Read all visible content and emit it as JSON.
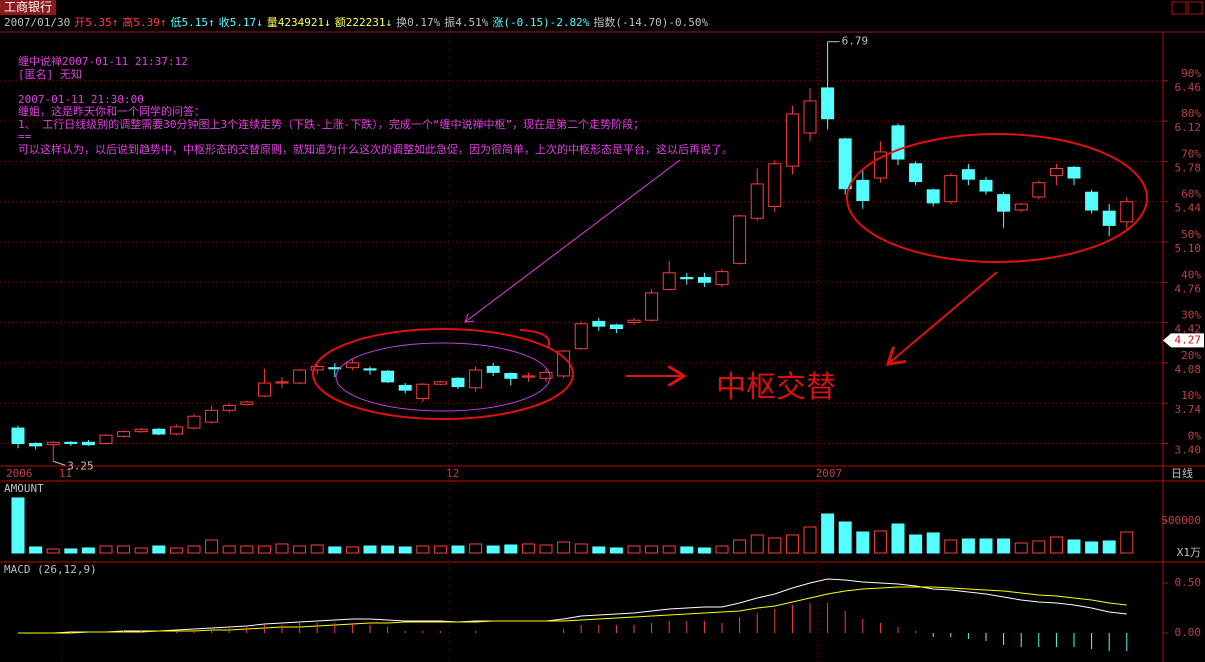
{
  "header": {
    "stock": "工商银行",
    "info": [
      "2007/01/30",
      "开5.35↑",
      "高5.39↑",
      "低5.15↑",
      "收5.17↓",
      "量4234921↓",
      "额222231↓",
      "换0.17%",
      "振4.51%",
      "涨(-0.15)-2.82%",
      "指数(-14.70)-0.50%"
    ]
  },
  "annotation": {
    "lines": [
      "缠中说禅2007-01-11 21:37:12",
      "[匿名] 无知",
      "",
      "2007-01-11 21:30:00",
      "缠姐，这是昨天你和一个同学的问答：",
      "1、 工行日线级别的调整需要30分钟图上3个连续走势（下跌-上涨-下跌），完成一个“缠中说禅中枢”，现在是第二个走势阶段；",
      "==",
      "可以这样认为，以后说到趋势中，中枢形态的交替原则，就知道为什么这次的调整如此急促，因为很简单，上次的中枢形态是平台，这以后再说了。"
    ],
    "callout": "中枢交替"
  },
  "chart_data": [
    {
      "type": "candlestick",
      "categories": [
        "2006",
        null,
        null,
        "11",
        null,
        null,
        null,
        null,
        null,
        null,
        null,
        null,
        null,
        null,
        null,
        null,
        null,
        null,
        null,
        null,
        null,
        null,
        null,
        null,
        null,
        "12",
        null,
        null,
        null,
        null,
        null,
        null,
        null,
        null,
        null,
        null,
        null,
        null,
        null,
        null,
        null,
        null,
        null,
        null,
        null,
        null,
        "2007",
        null,
        null,
        null,
        null,
        null,
        null,
        null,
        null,
        null,
        null,
        null,
        null,
        null,
        null,
        null,
        null,
        null
      ],
      "open": [
        3.53,
        3.4,
        3.39,
        3.41,
        3.41,
        3.4,
        3.46,
        3.5,
        3.52,
        3.48,
        3.53,
        3.58,
        3.68,
        3.73,
        3.8,
        3.91,
        3.91,
        4.02,
        4.04,
        4.04,
        4.03,
        4.01,
        3.89,
        3.78,
        3.9,
        3.95,
        3.87,
        4.05,
        3.99,
        3.96,
        3.95,
        3.97,
        4.2,
        4.43,
        4.4,
        4.42,
        4.44,
        4.7,
        4.8,
        4.8,
        4.74,
        4.92,
        5.3,
        5.4,
        5.74,
        6.02,
        6.4,
        5.97,
        5.62,
        5.64,
        6.08,
        5.76,
        5.54,
        5.44,
        5.71,
        5.62,
        5.5,
        5.37,
        5.48,
        5.66,
        5.73,
        5.52,
        5.36,
        5.27
      ],
      "high": [
        3.55,
        3.41,
        3.42,
        3.42,
        3.43,
        3.48,
        3.51,
        3.53,
        3.53,
        3.56,
        3.65,
        3.72,
        3.74,
        3.76,
        4.03,
        3.96,
        4.03,
        4.07,
        4.08,
        4.11,
        4.05,
        4.02,
        3.91,
        3.91,
        3.93,
        3.96,
        4.05,
        4.08,
        4.0,
        4.0,
        4.03,
        4.19,
        4.43,
        4.46,
        4.41,
        4.46,
        4.7,
        4.94,
        4.84,
        4.84,
        4.87,
        5.33,
        5.72,
        5.79,
        6.25,
        6.4,
        6.79,
        5.98,
        5.7,
        5.95,
        6.1,
        5.78,
        5.55,
        5.68,
        5.76,
        5.65,
        5.52,
        5.43,
        5.62,
        5.76,
        5.74,
        5.54,
        5.42,
        5.48
      ],
      "low": [
        3.36,
        3.35,
        3.25,
        3.38,
        3.38,
        3.39,
        3.45,
        3.49,
        3.47,
        3.47,
        3.52,
        3.57,
        3.66,
        3.72,
        3.79,
        3.87,
        3.9,
        3.98,
        3.96,
        4.02,
        3.98,
        3.91,
        3.82,
        3.75,
        3.89,
        3.86,
        3.84,
        3.97,
        3.89,
        3.92,
        3.92,
        3.95,
        4.19,
        4.35,
        4.33,
        4.4,
        4.43,
        4.69,
        4.74,
        4.72,
        4.72,
        4.91,
        5.28,
        5.35,
        5.67,
        5.95,
        6.05,
        5.5,
        5.38,
        5.6,
        5.75,
        5.58,
        5.4,
        5.42,
        5.58,
        5.5,
        5.22,
        5.35,
        5.46,
        5.58,
        5.58,
        5.34,
        5.15,
        5.21
      ],
      "close": [
        3.4,
        3.38,
        3.41,
        3.4,
        3.39,
        3.47,
        3.5,
        3.52,
        3.48,
        3.54,
        3.63,
        3.68,
        3.72,
        3.75,
        3.91,
        3.92,
        4.02,
        4.05,
        4.03,
        4.08,
        4.02,
        3.92,
        3.85,
        3.9,
        3.92,
        3.88,
        4.02,
        4.0,
        3.95,
        3.97,
        4.0,
        4.18,
        4.41,
        4.39,
        4.37,
        4.44,
        4.67,
        4.84,
        4.79,
        4.76,
        4.85,
        5.32,
        5.59,
        5.76,
        6.18,
        6.29,
        6.14,
        5.55,
        5.45,
        5.86,
        5.8,
        5.61,
        5.43,
        5.66,
        5.63,
        5.53,
        5.36,
        5.42,
        5.6,
        5.72,
        5.64,
        5.37,
        5.24,
        5.44
      ],
      "high_label": "6.79",
      "low_label": "3.25",
      "up_color": "#ff3c3c",
      "down_color": "#54ffff",
      "ylim": [
        3.21,
        6.99
      ],
      "yticks": [
        {
          "value": 3.4,
          "label": "3.40"
        },
        3.74,
        4.08,
        4.42,
        4.76,
        {
          "value": 5.1,
          "label": "5.10"
        },
        5.44,
        5.78,
        6.12,
        6.46
      ],
      "y2lim": [
        -5.59,
        105.59
      ],
      "y2ticks": [
        {
          "value": 0,
          "label": "0%"
        },
        {
          "value": 10,
          "label": "10%"
        },
        {
          "value": 20,
          "label": "20%"
        },
        {
          "value": 30,
          "label": "30%"
        },
        {
          "value": 40,
          "label": "40%"
        },
        {
          "value": 50,
          "label": "50%"
        },
        {
          "value": 60,
          "label": "60%"
        },
        {
          "value": 70,
          "label": "70%"
        },
        {
          "value": 80,
          "label": "80%"
        },
        {
          "value": 90,
          "label": "90%"
        }
      ],
      "last_price": 4.27,
      "period_label": "日线",
      "grid": true
    },
    {
      "type": "bar",
      "title": "AMOUNT",
      "unit_label": "X1万",
      "values": [
        860000,
        94000,
        63000,
        63000,
        78000,
        109000,
        109000,
        78000,
        109000,
        78000,
        109000,
        203000,
        109000,
        109000,
        109000,
        141000,
        109000,
        125000,
        94000,
        94000,
        109000,
        109000,
        94000,
        109000,
        109000,
        109000,
        141000,
        109000,
        125000,
        141000,
        125000,
        172000,
        141000,
        94000,
        78000,
        109000,
        109000,
        109000,
        94000,
        78000,
        109000,
        203000,
        281000,
        234000,
        281000,
        406000,
        609000,
        484000,
        328000,
        344000,
        453000,
        281000,
        313000,
        203000,
        219000,
        219000,
        219000,
        156000,
        188000,
        250000,
        203000,
        172000,
        188000,
        328000
      ],
      "ylim": [
        0,
        890000
      ],
      "yticks": [
        500000
      ]
    },
    {
      "type": "line",
      "title": "MACD (26,12,9)",
      "series": [
        {
          "color": "#ffffff",
          "values": [
            0,
            0,
            0,
            0.01,
            0.01,
            0.01,
            0.02,
            0.02,
            0.02,
            0.03,
            0.04,
            0.05,
            0.06,
            0.07,
            0.09,
            0.1,
            0.11,
            0.12,
            0.13,
            0.14,
            0.14,
            0.13,
            0.12,
            0.12,
            0.12,
            0.11,
            0.12,
            0.12,
            0.12,
            0.12,
            0.12,
            0.14,
            0.17,
            0.18,
            0.19,
            0.2,
            0.22,
            0.24,
            0.25,
            0.26,
            0.26,
            0.3,
            0.35,
            0.39,
            0.45,
            0.5,
            0.54,
            0.53,
            0.51,
            0.5,
            0.49,
            0.47,
            0.44,
            0.43,
            0.41,
            0.39,
            0.36,
            0.33,
            0.31,
            0.3,
            0.28,
            0.25,
            0.21,
            0.19
          ]
        },
        {
          "color": "#ffff00",
          "values": [
            0,
            0,
            0,
            0,
            0.01,
            0.01,
            0.01,
            0.01,
            0.02,
            0.02,
            0.02,
            0.03,
            0.03,
            0.04,
            0.05,
            0.06,
            0.06,
            0.07,
            0.08,
            0.09,
            0.1,
            0.1,
            0.11,
            0.11,
            0.11,
            0.11,
            0.11,
            0.12,
            0.12,
            0.12,
            0.12,
            0.12,
            0.13,
            0.14,
            0.15,
            0.16,
            0.17,
            0.18,
            0.19,
            0.2,
            0.21,
            0.22,
            0.25,
            0.27,
            0.31,
            0.35,
            0.39,
            0.42,
            0.44,
            0.45,
            0.46,
            0.46,
            0.46,
            0.45,
            0.44,
            0.43,
            0.42,
            0.4,
            0.38,
            0.37,
            0.35,
            0.33,
            0.3,
            0.28
          ]
        },
        {
          "style": "bar",
          "values": [
            0,
            0,
            0,
            0.02,
            0,
            0,
            0.02,
            0.02,
            0,
            0.02,
            0.04,
            0.04,
            0.06,
            0.06,
            0.08,
            0.08,
            0.1,
            0.1,
            0.1,
            0.1,
            0.08,
            0.06,
            0.02,
            0.02,
            0.02,
            0,
            0.02,
            0,
            0,
            0,
            0,
            0.04,
            0.08,
            0.08,
            0.08,
            0.08,
            0.1,
            0.12,
            0.12,
            0.12,
            0.1,
            0.16,
            0.2,
            0.24,
            0.28,
            0.3,
            0.3,
            0.22,
            0.14,
            0.1,
            0.06,
            0.02,
            -0.04,
            -0.04,
            -0.06,
            -0.08,
            -0.12,
            -0.14,
            -0.14,
            -0.14,
            -0.14,
            -0.16,
            -0.18,
            -0.18
          ]
        }
      ],
      "ylim": [
        -0.27,
        0.68
      ],
      "yticks": [
        {
          "value": 0.5,
          "label": "0.50"
        },
        {
          "value": 0,
          "label": "0.00"
        }
      ]
    }
  ]
}
